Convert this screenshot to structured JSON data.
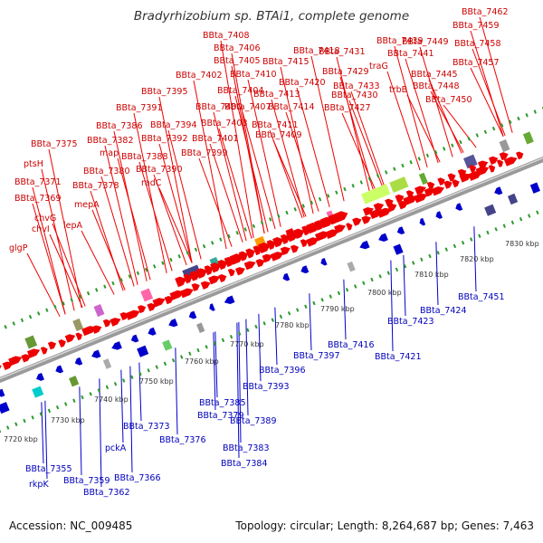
{
  "title": "Bradyrhizobium sp. BTAi1, complete genome",
  "footer": {
    "accession": "Accession: NC_009485",
    "summary": "Topology: circular; Length: 8,264,687 bp; Genes: 7,463"
  },
  "colors": {
    "forward": "#ee0000",
    "reverse": "#0000cc",
    "ruler": "#9a9a9a",
    "ticks": "#2a9a2a",
    "label_fwd": "#cc0000",
    "label_rev": "#0000bb"
  },
  "kbp_labels": [
    "7720 kbp",
    "7730 kbp",
    "7740 kbp",
    "7750 kbp",
    "7760 kbp",
    "7770 kbp",
    "7780 kbp",
    "7790 kbp",
    "7800 kbp",
    "7810 kbp",
    "7820 kbp",
    "7830 kbp"
  ],
  "forward_labels": [
    "glgP",
    "chvI",
    "chvG",
    "BBta_7369",
    "BBta_7371",
    "ptsH",
    "BBta_7375",
    "lepA",
    "mepA",
    "BBta_7378",
    "BBta_7380",
    "map",
    "BBta_7382",
    "BBta_7386",
    "BBta_7388",
    "BBta_7390",
    "radC",
    "BBta_7391",
    "BBta_7392",
    "BBta_7394",
    "BBta_7395",
    "BBta_7399",
    "BBta_7400",
    "BBta_7401",
    "BBta_7402",
    "BBta_7403",
    "BBta_7404",
    "BBta_7405",
    "BBta_7406",
    "BBta_7407",
    "BBta_7408",
    "BBta_7409",
    "BBta_7410",
    "BBta_7411",
    "BBta_7413",
    "BBta_7414",
    "BBta_7415",
    "BBta_7418",
    "BBta_7420",
    "BBta_7427",
    "BBta_7429",
    "BBta_7430",
    "BBta_7431",
    "BBta_7433",
    "BBta_7439",
    "traG",
    "trbB",
    "BBta_7441",
    "BBta_7445",
    "BBta_7448",
    "BBta_7449",
    "BBta_7450",
    "BBta_7457",
    "BBta_7458",
    "BBta_7459",
    "BBta_7462"
  ],
  "reverse_labels": [
    "BBta_7355",
    "rkpK",
    "BBta_7359",
    "BBta_7362",
    "pckA",
    "BBta_7366",
    "BBta_7373",
    "BBta_7376",
    "BBta_7379",
    "BBta_7383",
    "BBta_7384",
    "BBta_7385",
    "BBta_7389",
    "BBta_7393",
    "BBta_7396",
    "BBta_7397",
    "BBta_7416",
    "BBta_7421",
    "BBta_7423",
    "BBta_7424",
    "BBta_7451"
  ]
}
